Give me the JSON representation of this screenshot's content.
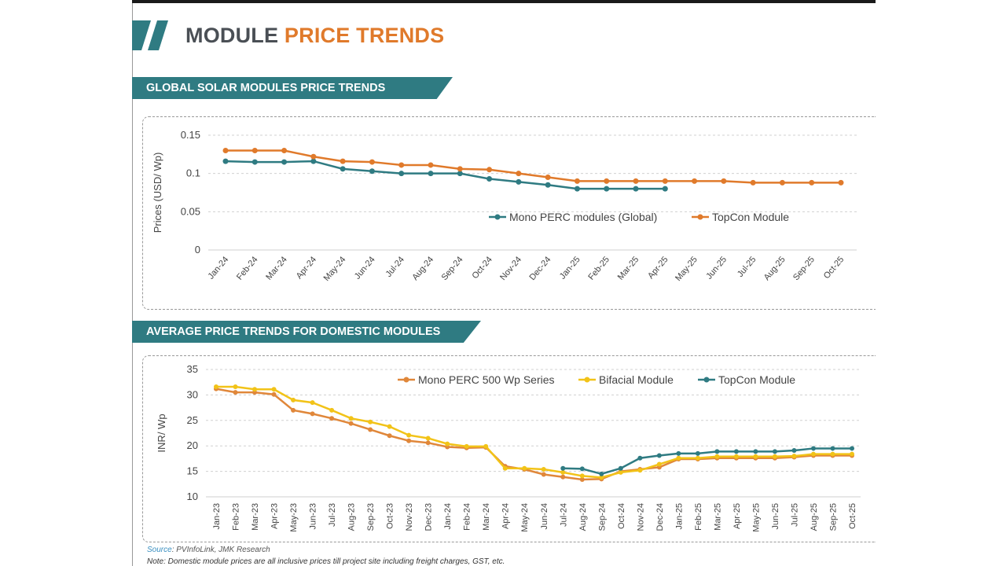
{
  "header": {
    "title_part1": "MODULE",
    "title_part2": "PRICE TRENDS"
  },
  "section1": {
    "label": "GLOBAL SOLAR MODULES PRICE TRENDS"
  },
  "section2": {
    "label": "AVERAGE PRICE TRENDS FOR DOMESTIC MODULES"
  },
  "footer": {
    "source_label": "Source",
    "source_text": ": PVInfoLink, JMK Research",
    "note": "Note: Domestic module prices are all inclusive prices till project site including freight charges, GST, etc."
  },
  "colors": {
    "teal": "#2f7b82",
    "orange": "#e07a2b",
    "yellow": "#f2c318",
    "mono_orange": "#e0873a"
  },
  "chart_data": [
    {
      "type": "line",
      "ylabel": "Prices (USD/ Wp)",
      "ylim": [
        0,
        0.15
      ],
      "yticks": [
        "0",
        "0.05",
        "0.1",
        "0.15"
      ],
      "grid": true,
      "legend": "center-right",
      "categories": [
        "Jan-24",
        "Feb-24",
        "Mar-24",
        "Apr-24",
        "May-24",
        "Jun-24",
        "Jul-24",
        "Aug-24",
        "Sep-24",
        "Oct-24",
        "Nov-24",
        "Dec-24",
        "Jan-25",
        "Feb-25",
        "Mar-25",
        "Apr-25",
        "May-25",
        "Jun-25",
        "Jul-25",
        "Aug-25",
        "Sep-25",
        "Oct-25"
      ],
      "series": [
        {
          "name": "Mono PERC modules (Global)",
          "color": "#2f7b82",
          "values": [
            0.116,
            0.115,
            0.115,
            0.116,
            0.106,
            0.103,
            0.1,
            0.1,
            0.1,
            0.093,
            0.089,
            0.085,
            0.08,
            0.08,
            0.08,
            0.08,
            null,
            null,
            null,
            null,
            null,
            null
          ]
        },
        {
          "name": "TopCon Module",
          "color": "#e07a2b",
          "values": [
            0.13,
            0.13,
            0.13,
            0.122,
            0.116,
            0.115,
            0.111,
            0.111,
            0.106,
            0.105,
            0.1,
            0.095,
            0.09,
            0.09,
            0.09,
            0.09,
            0.09,
            0.09,
            0.088,
            0.088,
            0.088,
            0.088
          ]
        }
      ]
    },
    {
      "type": "line",
      "ylabel": "INR/ Wp",
      "ylim": [
        10,
        35
      ],
      "yticks": [
        "10",
        "15",
        "20",
        "25",
        "30",
        "35"
      ],
      "grid": true,
      "legend": "top-right",
      "categories": [
        "Jan-23",
        "Feb-23",
        "Mar-23",
        "Apr-23",
        "May-23",
        "Jun-23",
        "Jul-23",
        "Aug-23",
        "Sep-23",
        "Oct-23",
        "Nov-23",
        "Dec-23",
        "Jan-24",
        "Feb-24",
        "Mar-24",
        "Apr-24",
        "May-24",
        "Jun-24",
        "Jul-24",
        "Aug-24",
        "Sep-24",
        "Oct-24",
        "Nov-24",
        "Dec-24",
        "Jan-25",
        "Feb-25",
        "Mar-25",
        "Apr-25",
        "May-25",
        "Jun-25",
        "Jul-25",
        "Aug-25",
        "Sep-25",
        "Oct-25"
      ],
      "series": [
        {
          "name": "Mono PERC 500 Wp Series",
          "color": "#e0873a",
          "values": [
            31.2,
            30.5,
            30.5,
            30.1,
            27.0,
            26.3,
            25.4,
            24.4,
            23.2,
            22.0,
            21.0,
            20.6,
            19.8,
            19.6,
            19.7,
            16.0,
            15.4,
            14.4,
            13.9,
            13.4,
            13.5,
            15.0,
            15.4,
            15.8,
            17.4,
            17.4,
            17.6,
            17.6,
            17.6,
            17.6,
            17.8,
            18.1,
            18.1,
            18.1
          ]
        },
        {
          "name": "Bifacial Module",
          "color": "#f2c318",
          "values": [
            31.6,
            31.6,
            31.1,
            31.1,
            29.0,
            28.5,
            27.0,
            25.4,
            24.7,
            23.8,
            22.1,
            21.5,
            20.4,
            19.9,
            19.9,
            15.6,
            15.6,
            15.4,
            14.8,
            14.1,
            13.8,
            14.8,
            15.2,
            16.4,
            17.6,
            17.6,
            17.9,
            17.9,
            17.9,
            17.9,
            18.0,
            18.4,
            18.4,
            18.4
          ]
        },
        {
          "name": "TopCon Module",
          "color": "#2f7b82",
          "values": [
            null,
            null,
            null,
            null,
            null,
            null,
            null,
            null,
            null,
            null,
            null,
            null,
            null,
            null,
            null,
            null,
            null,
            null,
            15.6,
            15.5,
            14.5,
            15.6,
            17.6,
            18.1,
            18.5,
            18.5,
            18.9,
            18.9,
            18.9,
            18.9,
            19.1,
            19.5,
            19.5,
            19.5
          ]
        }
      ]
    }
  ]
}
